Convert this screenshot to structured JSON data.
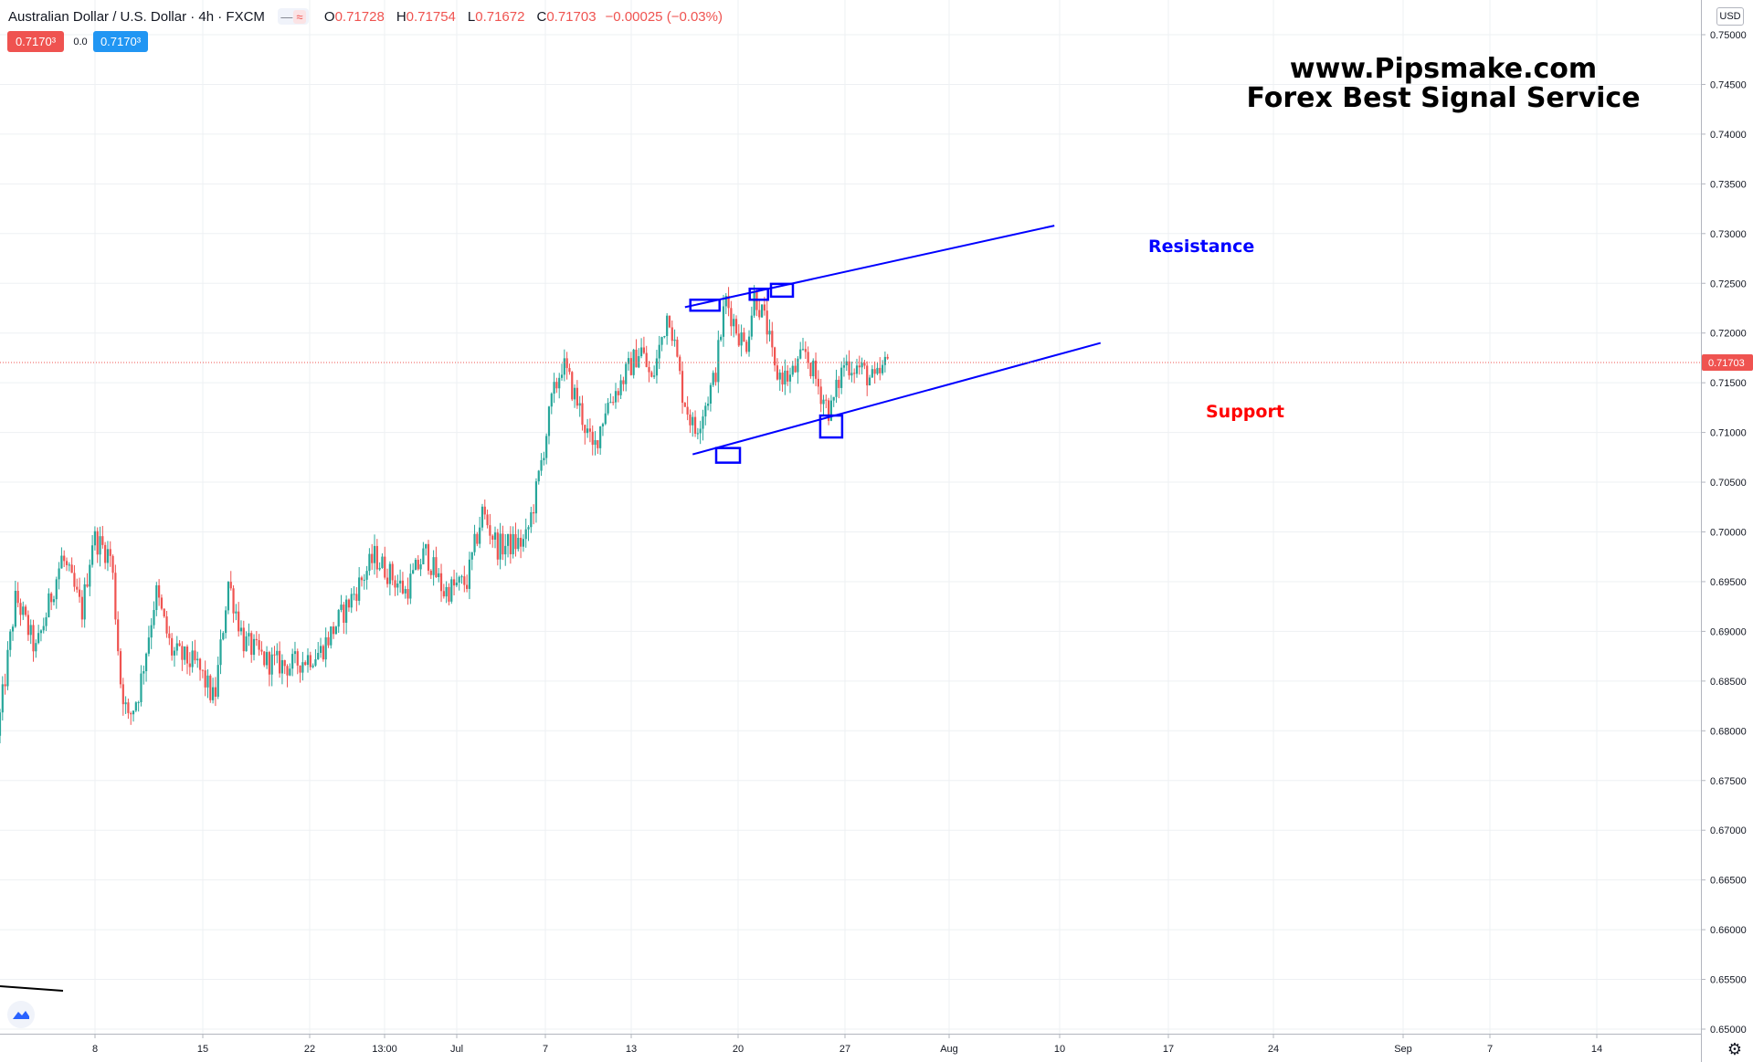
{
  "header": {
    "symbol": "Australian Dollar / U.S. Dollar · 4h · FXCM",
    "toggle_icons": [
      "minus-icon",
      "wave-icon"
    ],
    "open_label": "O",
    "open": "0.71728",
    "high_label": "H",
    "high": "0.71754",
    "low_label": "L",
    "low": "0.71672",
    "close_label": "C",
    "close": "0.71703",
    "change": "−0.00025 (−0.03%)"
  },
  "quote": {
    "bid": "0.7170³",
    "spread": "0.0",
    "ask": "0.7170³"
  },
  "watermark": {
    "line1": "www.Pipsmake.com",
    "line2": "Forex Best Signal Service"
  },
  "currency": "USD",
  "colors": {
    "up": "#26a69a",
    "down": "#ef5350",
    "trendline": "#0000ff",
    "support_text": "#ff0000",
    "resistance_text": "#0000ff"
  },
  "chart_data": {
    "type": "candlestick",
    "ylim": [
      0.65,
      0.752
    ],
    "y_ticks": [
      "0.75000",
      "0.74500",
      "0.74000",
      "0.73500",
      "0.73000",
      "0.72500",
      "0.72000",
      "0.71500",
      "0.71000",
      "0.70500",
      "0.70000",
      "0.69500",
      "0.69000",
      "0.68500",
      "0.68000",
      "0.67500",
      "0.67000",
      "0.66500",
      "0.66000",
      "0.65500",
      "0.65000"
    ],
    "x_ticks": [
      "8",
      "15",
      "22",
      "13:00",
      "Jul",
      "7",
      "13",
      "20",
      "27",
      "Aug",
      "10",
      "17",
      "24",
      "Sep",
      "7",
      "14"
    ],
    "last_price": "0.71703",
    "last_price_value": 0.71703,
    "price_path": [
      {
        "t": 0,
        "p": 0.6795
      },
      {
        "t": 1.2,
        "p": 0.6935
      },
      {
        "t": 2.5,
        "p": 0.688
      },
      {
        "t": 4.2,
        "p": 0.6975
      },
      {
        "t": 5.5,
        "p": 0.692
      },
      {
        "t": 6.2,
        "p": 0.6995
      },
      {
        "t": 7.4,
        "p": 0.6975
      },
      {
        "t": 8.0,
        "p": 0.685
      },
      {
        "t": 8.5,
        "p": 0.681
      },
      {
        "t": 9.2,
        "p": 0.684
      },
      {
        "t": 10.3,
        "p": 0.694
      },
      {
        "t": 11.3,
        "p": 0.688
      },
      {
        "t": 13.0,
        "p": 0.6865
      },
      {
        "t": 14.1,
        "p": 0.683
      },
      {
        "t": 15.0,
        "p": 0.695
      },
      {
        "t": 16.0,
        "p": 0.689
      },
      {
        "t": 17.5,
        "p": 0.687
      },
      {
        "t": 19.0,
        "p": 0.6865
      },
      {
        "t": 21.0,
        "p": 0.688
      },
      {
        "t": 22.5,
        "p": 0.692
      },
      {
        "t": 24.5,
        "p": 0.6975
      },
      {
        "t": 26.5,
        "p": 0.694
      },
      {
        "t": 27.8,
        "p": 0.698
      },
      {
        "t": 29.0,
        "p": 0.694
      },
      {
        "t": 30.5,
        "p": 0.695
      },
      {
        "t": 31.5,
        "p": 0.702
      },
      {
        "t": 32.5,
        "p": 0.6985
      },
      {
        "t": 34.3,
        "p": 0.699
      },
      {
        "t": 35.0,
        "p": 0.704
      },
      {
        "t": 36.0,
        "p": 0.713
      },
      {
        "t": 36.7,
        "p": 0.717
      },
      {
        "t": 37.8,
        "p": 0.7125
      },
      {
        "t": 38.7,
        "p": 0.708
      },
      {
        "t": 39.5,
        "p": 0.7125
      },
      {
        "t": 40.5,
        "p": 0.715
      },
      {
        "t": 41.8,
        "p": 0.7185
      },
      {
        "t": 42.5,
        "p": 0.715
      },
      {
        "t": 43.6,
        "p": 0.7225
      },
      {
        "t": 44.5,
        "p": 0.714
      },
      {
        "t": 45.3,
        "p": 0.71
      },
      {
        "t": 46.6,
        "p": 0.7155
      },
      {
        "t": 47.3,
        "p": 0.7235
      },
      {
        "t": 48.0,
        "p": 0.7205
      },
      {
        "t": 48.6,
        "p": 0.7185
      },
      {
        "t": 49.2,
        "p": 0.724
      },
      {
        "t": 50.0,
        "p": 0.7205
      },
      {
        "t": 50.5,
        "p": 0.716
      },
      {
        "t": 51.5,
        "p": 0.7155
      },
      {
        "t": 52.5,
        "p": 0.718
      },
      {
        "t": 53.5,
        "p": 0.714
      },
      {
        "t": 54.1,
        "p": 0.712
      },
      {
        "t": 55.0,
        "p": 0.717
      },
      {
        "t": 56.0,
        "p": 0.7165
      },
      {
        "t": 57.0,
        "p": 0.715
      },
      {
        "t": 57.8,
        "p": 0.717
      }
    ],
    "resistance_line": {
      "label": "Resistance",
      "start": {
        "t": 44.5,
        "p": 0.7226
      },
      "end": {
        "t": 68.5,
        "p": 0.7308
      }
    },
    "support_line": {
      "label": "Support",
      "start": {
        "t": 45.0,
        "p": 0.7078
      },
      "end": {
        "t": 71.5,
        "p": 0.719
      }
    },
    "touch_points": [
      {
        "t": 45.8,
        "p": 0.7228
      },
      {
        "t": 49.3,
        "p": 0.7239
      },
      {
        "t": 50.8,
        "p": 0.7243
      },
      {
        "t": 47.3,
        "p": 0.7077
      },
      {
        "t": 54.0,
        "p": 0.7106
      }
    ]
  }
}
